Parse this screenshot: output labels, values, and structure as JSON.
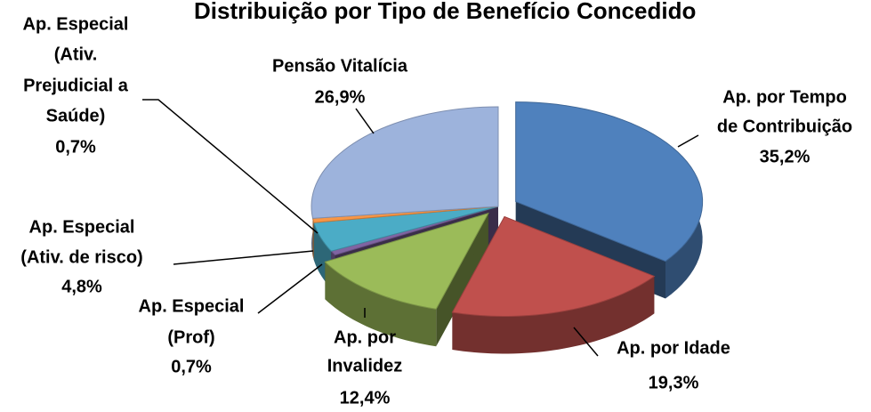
{
  "chart_data": {
    "type": "pie",
    "title": "Distribuição por Tipo de Benefício Concedido",
    "categories": [
      [
        "Ap. por Tempo",
        "de Contribuição"
      ],
      [
        "Ap. por Idade"
      ],
      [
        "Ap. por",
        "Invalidez"
      ],
      [
        "Ap. Especial",
        "(Prof)"
      ],
      [
        "Ap. Especial",
        "(Ativ. de risco)"
      ],
      [
        "Ap. Especial",
        "(Ativ.",
        "Prejudicial a",
        "Saúde)"
      ],
      [
        "Pensão Vitalícia"
      ]
    ],
    "values": [
      35.2,
      19.3,
      12.4,
      0.7,
      4.8,
      0.7,
      26.9
    ],
    "value_labels": [
      "35,2%",
      "19,3%",
      "12,4%",
      "0,7%",
      "4,8%",
      "0,7%",
      "26,9%"
    ],
    "colors": [
      "#4f81bd",
      "#c0504d",
      "#9bbb59",
      "#8064a2",
      "#4bacc6",
      "#f79646",
      "#9db3dc"
    ]
  }
}
